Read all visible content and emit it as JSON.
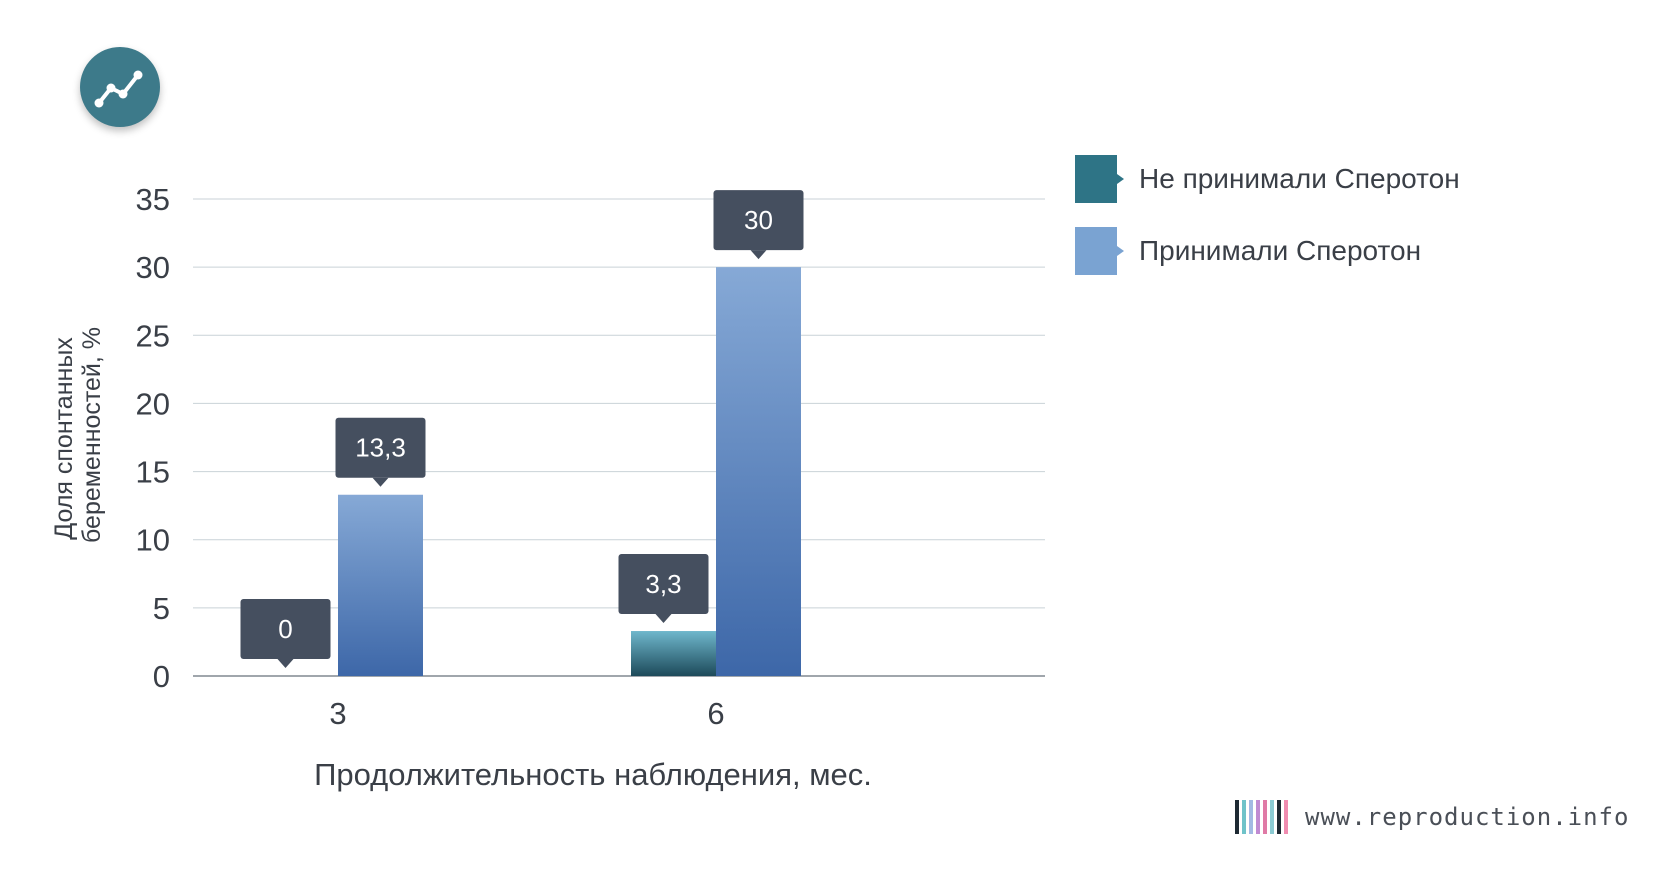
{
  "icon": "line-chart-icon",
  "colors": {
    "series_0": "#2e7486",
    "series_1": "#7aa3d2",
    "grid": "#c9d2d7",
    "axis": "#808890",
    "label_box": "#454f5f",
    "icon_bg": "#3d7a8a",
    "text": "#3a3f47"
  },
  "chart_data": {
    "type": "bar",
    "categories": [
      "3",
      "6"
    ],
    "series": [
      {
        "name": "Не принимали Сперотон",
        "values": [
          0,
          3.3
        ],
        "labels": [
          "0",
          "3,3"
        ]
      },
      {
        "name": "Принимали Сперотон",
        "values": [
          13.3,
          30
        ],
        "labels": [
          "13,3",
          "30"
        ]
      }
    ],
    "xlabel": "Продолжительность наблюдения, мес.",
    "ylabel_lines": [
      "Доля спонтанных",
      "беременностей, %"
    ],
    "ylim": [
      0,
      35
    ],
    "yticks": [
      0,
      5,
      10,
      15,
      20,
      25,
      30,
      35
    ],
    "grid": true,
    "legend_position": "right"
  },
  "legend": [
    {
      "label": "Не принимали Сперотон",
      "color": "#2e7486"
    },
    {
      "label": "Принимали Сперотон",
      "color": "#7aa3d2"
    }
  ],
  "footer": {
    "site": "www.reproduction.info",
    "barcode_colors": [
      "#1e2a33",
      "#6fc3c9",
      "#a3b9e3",
      "#c08ad2",
      "#e07aa6",
      "#8bcbd3",
      "#1e2a33",
      "#f08cb0"
    ]
  }
}
